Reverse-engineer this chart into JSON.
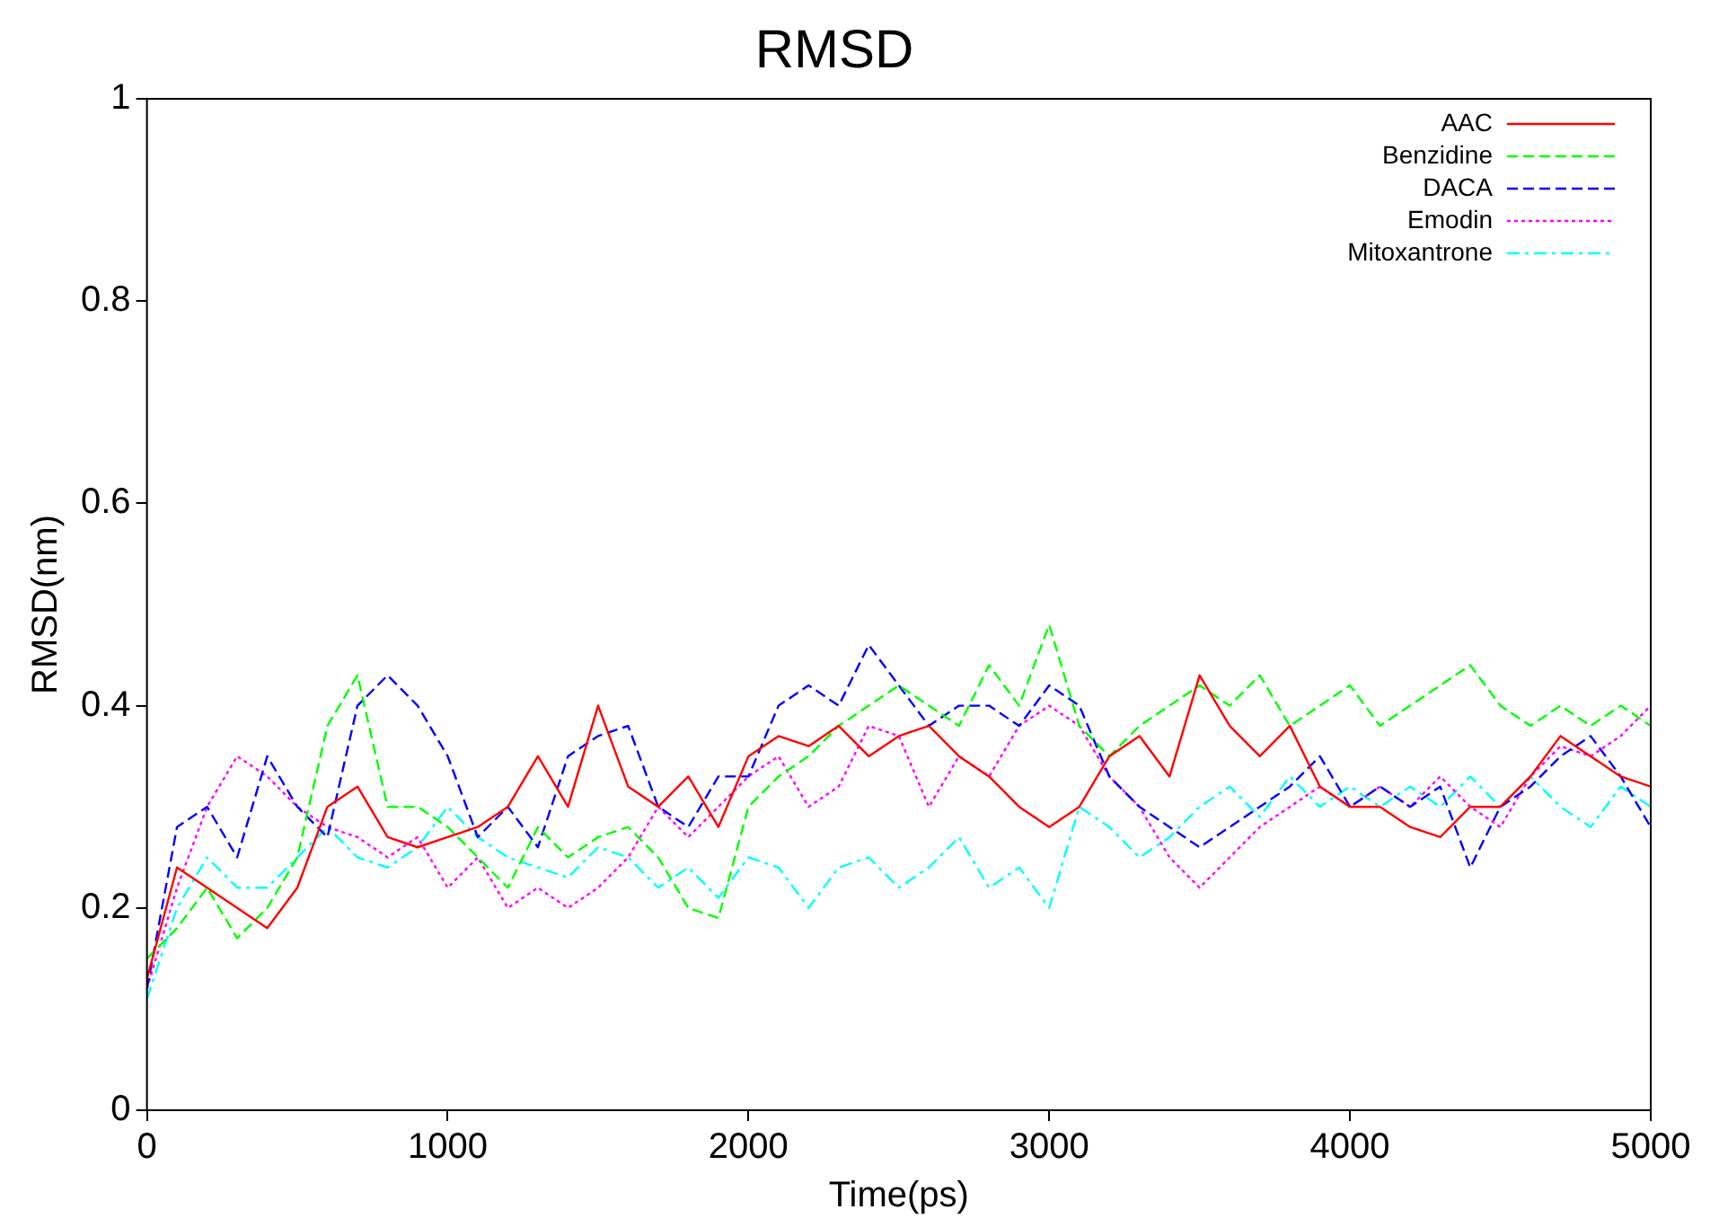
{
  "chart_data": {
    "type": "line",
    "title": "RMSD",
    "xlabel": "Time(ps)",
    "ylabel": "RMSD(nm)",
    "x": [
      0,
      100,
      200,
      300,
      400,
      500,
      600,
      700,
      800,
      900,
      1000,
      1100,
      1200,
      1300,
      1400,
      1500,
      1600,
      1700,
      1800,
      1900,
      2000,
      2100,
      2200,
      2300,
      2400,
      2500,
      2600,
      2700,
      2800,
      2900,
      3000,
      3100,
      3200,
      3300,
      3400,
      3500,
      3600,
      3700,
      3800,
      3900,
      4000,
      4100,
      4200,
      4300,
      4400,
      4500,
      4600,
      4700,
      4800,
      4900,
      5000
    ],
    "series": [
      {
        "name": "AAC",
        "color": "#ff0000",
        "line_style": "solid",
        "values": [
          0.13,
          0.24,
          0.22,
          0.2,
          0.18,
          0.22,
          0.3,
          0.32,
          0.27,
          0.26,
          0.27,
          0.28,
          0.3,
          0.35,
          0.3,
          0.4,
          0.32,
          0.3,
          0.33,
          0.28,
          0.35,
          0.37,
          0.36,
          0.38,
          0.35,
          0.37,
          0.38,
          0.35,
          0.33,
          0.3,
          0.28,
          0.3,
          0.35,
          0.37,
          0.33,
          0.43,
          0.38,
          0.35,
          0.38,
          0.32,
          0.3,
          0.3,
          0.28,
          0.27,
          0.3,
          0.3,
          0.33,
          0.37,
          0.35,
          0.33,
          0.32
        ]
      },
      {
        "name": "Benzidine",
        "color": "#00ff00",
        "line_style": "dashed",
        "values": [
          0.15,
          0.18,
          0.22,
          0.17,
          0.2,
          0.25,
          0.38,
          0.43,
          0.3,
          0.3,
          0.28,
          0.25,
          0.22,
          0.28,
          0.25,
          0.27,
          0.28,
          0.25,
          0.2,
          0.19,
          0.3,
          0.33,
          0.35,
          0.38,
          0.4,
          0.42,
          0.4,
          0.38,
          0.44,
          0.4,
          0.48,
          0.38,
          0.35,
          0.38,
          0.4,
          0.42,
          0.4,
          0.43,
          0.38,
          0.4,
          0.42,
          0.38,
          0.4,
          0.42,
          0.44,
          0.4,
          0.38,
          0.4,
          0.38,
          0.4,
          0.38
        ]
      },
      {
        "name": "DACA",
        "color": "#0000ff",
        "line_style": "dashed",
        "values": [
          0.12,
          0.28,
          0.3,
          0.25,
          0.35,
          0.3,
          0.27,
          0.4,
          0.43,
          0.4,
          0.35,
          0.27,
          0.3,
          0.26,
          0.35,
          0.37,
          0.38,
          0.3,
          0.28,
          0.33,
          0.33,
          0.4,
          0.42,
          0.4,
          0.46,
          0.42,
          0.38,
          0.4,
          0.4,
          0.38,
          0.42,
          0.4,
          0.33,
          0.3,
          0.28,
          0.26,
          0.28,
          0.3,
          0.32,
          0.35,
          0.3,
          0.32,
          0.3,
          0.32,
          0.24,
          0.3,
          0.32,
          0.35,
          0.37,
          0.33,
          0.28
        ]
      },
      {
        "name": "Emodin",
        "color": "#ff00ff",
        "line_style": "dotted",
        "values": [
          0.12,
          0.22,
          0.3,
          0.35,
          0.33,
          0.3,
          0.28,
          0.27,
          0.25,
          0.27,
          0.22,
          0.25,
          0.2,
          0.22,
          0.2,
          0.22,
          0.25,
          0.3,
          0.27,
          0.3,
          0.33,
          0.35,
          0.3,
          0.32,
          0.38,
          0.37,
          0.3,
          0.35,
          0.33,
          0.38,
          0.4,
          0.38,
          0.33,
          0.3,
          0.25,
          0.22,
          0.25,
          0.28,
          0.3,
          0.32,
          0.3,
          0.32,
          0.3,
          0.33,
          0.3,
          0.28,
          0.33,
          0.36,
          0.35,
          0.37,
          0.4
        ]
      },
      {
        "name": "Mitoxantrone",
        "color": "#00ffff",
        "line_style": "dashdot",
        "values": [
          0.11,
          0.2,
          0.25,
          0.22,
          0.22,
          0.25,
          0.28,
          0.25,
          0.24,
          0.26,
          0.3,
          0.27,
          0.25,
          0.24,
          0.23,
          0.26,
          0.25,
          0.22,
          0.24,
          0.21,
          0.25,
          0.24,
          0.2,
          0.24,
          0.25,
          0.22,
          0.24,
          0.27,
          0.22,
          0.24,
          0.2,
          0.3,
          0.28,
          0.25,
          0.27,
          0.3,
          0.32,
          0.29,
          0.33,
          0.3,
          0.32,
          0.3,
          0.32,
          0.3,
          0.33,
          0.3,
          0.33,
          0.3,
          0.28,
          0.32,
          0.3
        ]
      }
    ],
    "xlim": [
      0,
      5000
    ],
    "xticks": [
      0,
      1000,
      2000,
      3000,
      4000,
      5000
    ],
    "ylim": [
      0,
      1
    ],
    "yticks": [
      0,
      0.2,
      0.4,
      0.6,
      0.8,
      1
    ],
    "grid": false,
    "legend": "top right",
    "marker": "none"
  }
}
